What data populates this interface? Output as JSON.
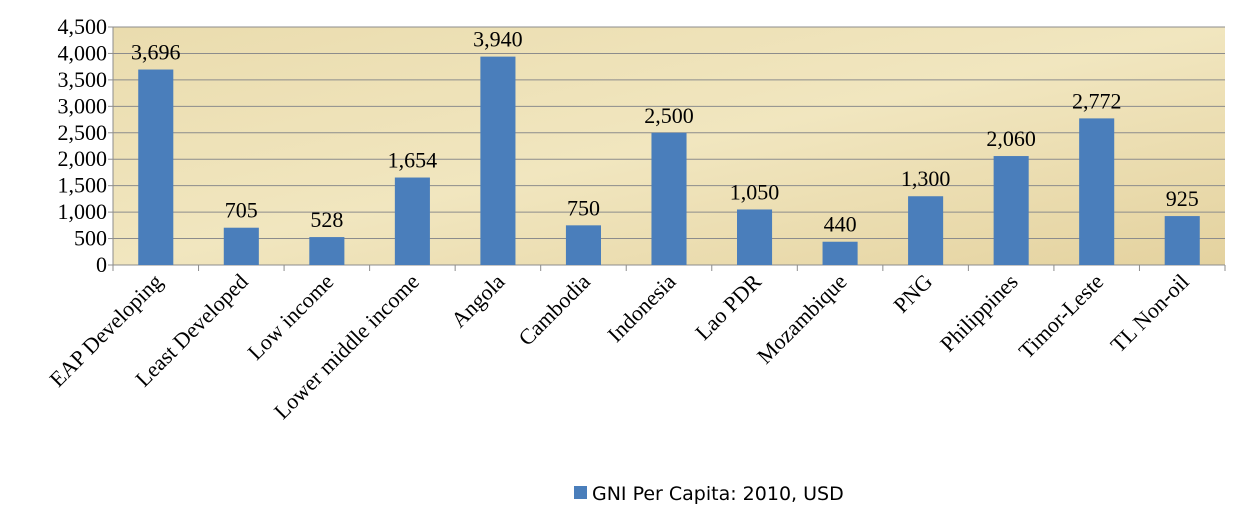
{
  "chart_data": {
    "type": "bar",
    "categories": [
      "EAP Developing",
      "Least Developed",
      "Low income",
      "Lower middle income",
      "Angola",
      "Cambodia",
      "Indonesia",
      "Lao PDR",
      "Mozambique",
      "PNG",
      "Philippines",
      "Timor-Leste",
      "TL Non-oil"
    ],
    "series": [
      {
        "name": "GNI Per Capita: 2010, USD",
        "color": "#4a7ebb",
        "values": [
          3696,
          705,
          528,
          1654,
          3940,
          750,
          2500,
          1050,
          440,
          1300,
          2060,
          2772,
          925
        ],
        "value_labels": [
          "3,696",
          "705",
          "528",
          "1,654",
          "3,940",
          "750",
          "2,500",
          "1,050",
          "440",
          "1,300",
          "2,060",
          "2,772",
          "925"
        ]
      }
    ],
    "ylim": [
      0,
      4500
    ],
    "yticks": [
      0,
      500,
      {
        "value": 1000,
        "label": "1,000"
      },
      {
        "value": 1500,
        "label": "1,500"
      },
      {
        "value": 2000,
        "label": "2,000"
      },
      {
        "value": 2500,
        "label": "2,500"
      },
      {
        "value": 3000,
        "label": "3,000"
      },
      {
        "value": 3500,
        "label": "3,500"
      },
      {
        "value": 4000,
        "label": "4,000"
      },
      {
        "value": 4500,
        "label": "4,500"
      }
    ],
    "grid": true,
    "legend": "bottom"
  }
}
